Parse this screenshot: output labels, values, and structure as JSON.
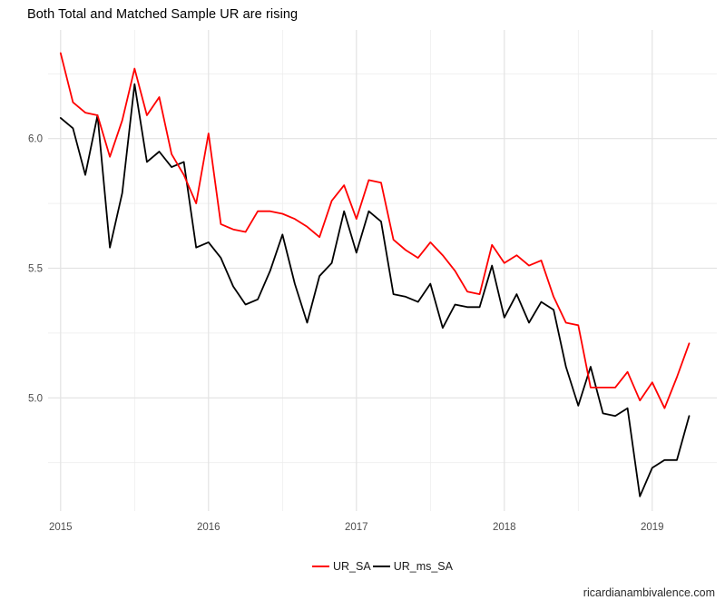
{
  "header": {
    "title": "Both Total and Matched Sample UR are rising"
  },
  "footer": {
    "caption": "ricardianambivalence.com"
  },
  "legend": {
    "position": "bottom-center",
    "items": [
      {
        "label": "UR_SA",
        "color": "#ff0000"
      },
      {
        "label": "UR_ms_SA",
        "color": "#000000"
      }
    ]
  },
  "axes": {
    "y_ticks": [
      "6.0",
      "5.5",
      "5.0"
    ],
    "x_ticks": [
      "2015",
      "2016",
      "2017",
      "2018",
      "2019"
    ]
  },
  "colors": {
    "background": "#ffffff",
    "grid_major": "#e3e3e3",
    "grid_minor": "#ededed",
    "tick_label": "#4d4d4d",
    "series_ur_sa": "#ff0000",
    "series_ur_ms_sa": "#000000"
  },
  "chart_data": {
    "type": "line",
    "title": "Both Total and Matched Sample UR are rising",
    "caption": "ricardianambivalence.com",
    "x_frequency": "monthly",
    "x_start": "2015-01",
    "x_end": "2019-04",
    "x_axis_tick_years": [
      2015,
      2016,
      2017,
      2018,
      2019
    ],
    "x_minor_gridlines_years": [
      2015.5,
      2016.5,
      2017.5,
      2018.5
    ],
    "y_axis_ticks": [
      6.0,
      5.5,
      5.0
    ],
    "y_minor_gridlines": [
      6.25,
      5.75,
      5.25,
      4.75
    ],
    "ylim": [
      4.56,
      6.42
    ],
    "xlim_years": [
      2014.92,
      2019.44
    ],
    "grid": "major and minor light-gray gridlines on white, no axis lines or tick marks",
    "legend_position": "bottom-center",
    "series": [
      {
        "name": "UR_SA",
        "color": "#ff0000",
        "values": [
          6.33,
          6.14,
          6.1,
          6.09,
          5.93,
          6.07,
          6.27,
          6.09,
          6.16,
          5.94,
          5.86,
          5.75,
          6.02,
          5.67,
          5.65,
          5.64,
          5.72,
          5.72,
          5.71,
          5.69,
          5.66,
          5.62,
          5.76,
          5.82,
          5.69,
          5.84,
          5.83,
          5.61,
          5.57,
          5.54,
          5.6,
          5.55,
          5.49,
          5.41,
          5.4,
          5.59,
          5.52,
          5.55,
          5.51,
          5.53,
          5.39,
          5.29,
          5.28,
          5.04,
          5.04,
          5.04,
          5.1,
          4.99,
          5.06,
          4.96,
          5.08,
          5.21
        ]
      },
      {
        "name": "UR_ms_SA",
        "color": "#000000",
        "values": [
          6.08,
          6.04,
          5.86,
          6.09,
          5.58,
          5.79,
          6.21,
          5.91,
          5.95,
          5.89,
          5.91,
          5.58,
          5.6,
          5.54,
          5.43,
          5.36,
          5.38,
          5.49,
          5.63,
          5.44,
          5.29,
          5.47,
          5.52,
          5.72,
          5.56,
          5.72,
          5.68,
          5.4,
          5.39,
          5.37,
          5.44,
          5.27,
          5.36,
          5.35,
          5.35,
          5.51,
          5.31,
          5.4,
          5.29,
          5.37,
          5.34,
          5.12,
          4.97,
          5.12,
          4.94,
          4.93,
          4.96,
          4.62,
          4.73,
          4.76,
          4.76,
          4.93
        ]
      }
    ]
  }
}
